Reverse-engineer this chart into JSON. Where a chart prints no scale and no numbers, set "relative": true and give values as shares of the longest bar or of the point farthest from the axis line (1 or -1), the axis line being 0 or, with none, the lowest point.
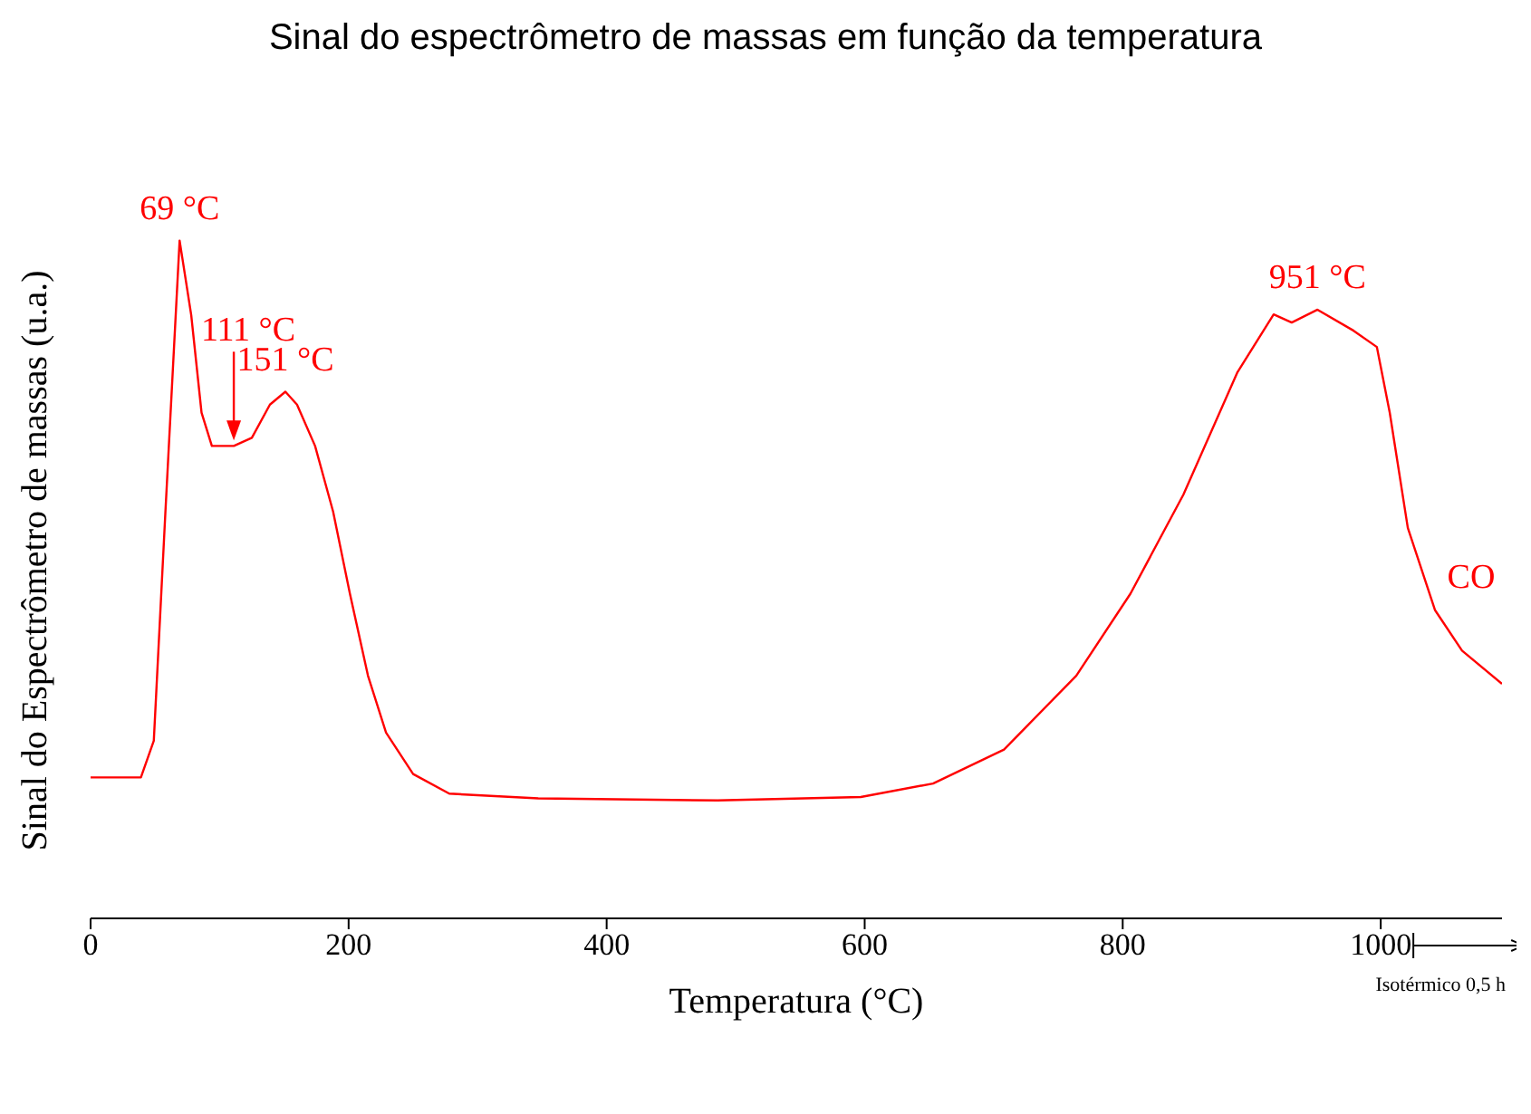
{
  "chart_data": {
    "type": "line",
    "title": "Sinal do espectrômetro de massas em função da temperatura",
    "xlabel": "Temperatura (°C)",
    "ylabel": "Sinal do Espectrômetro de massas (u.a.)",
    "relative": true,
    "xlim": [
      0,
      1094
    ],
    "xticks": [
      0,
      200,
      400,
      600,
      800,
      1000
    ],
    "marker": "none",
    "line_style": "solid",
    "x": [
      0,
      39,
      49,
      58,
      69,
      78,
      86,
      94,
      111,
      125,
      139,
      151,
      160,
      174,
      188,
      201,
      215,
      229,
      250,
      278,
      347,
      486,
      597,
      653,
      708,
      764,
      806,
      847,
      889,
      917,
      931,
      951,
      979,
      997,
      1007,
      1021,
      1042,
      1063,
      1094
    ],
    "series": [
      {
        "color": "#ff0000",
        "values": [
          0.208,
          0.208,
          0.262,
          0.6,
          1.0,
          0.89,
          0.746,
          0.697,
          0.697,
          0.709,
          0.758,
          0.777,
          0.758,
          0.697,
          0.6,
          0.479,
          0.358,
          0.274,
          0.213,
          0.184,
          0.177,
          0.174,
          0.179,
          0.199,
          0.249,
          0.358,
          0.479,
          0.625,
          0.806,
          0.891,
          0.879,
          0.898,
          0.867,
          0.843,
          0.746,
          0.576,
          0.455,
          0.395,
          0.346
        ]
      }
    ],
    "annotations": [
      {
        "text": "69 °C",
        "x": 69,
        "y": 1.0
      },
      {
        "text": "111 °C",
        "x": 111,
        "y": 0.697
      },
      {
        "text": "151 °C",
        "x": 151,
        "y": 0.777
      },
      {
        "text": "951 °C",
        "x": 951,
        "y": 0.898
      },
      {
        "text": "CO",
        "x": 1042,
        "y": 0.455
      },
      "Isotérmico 0,5 h"
    ]
  }
}
